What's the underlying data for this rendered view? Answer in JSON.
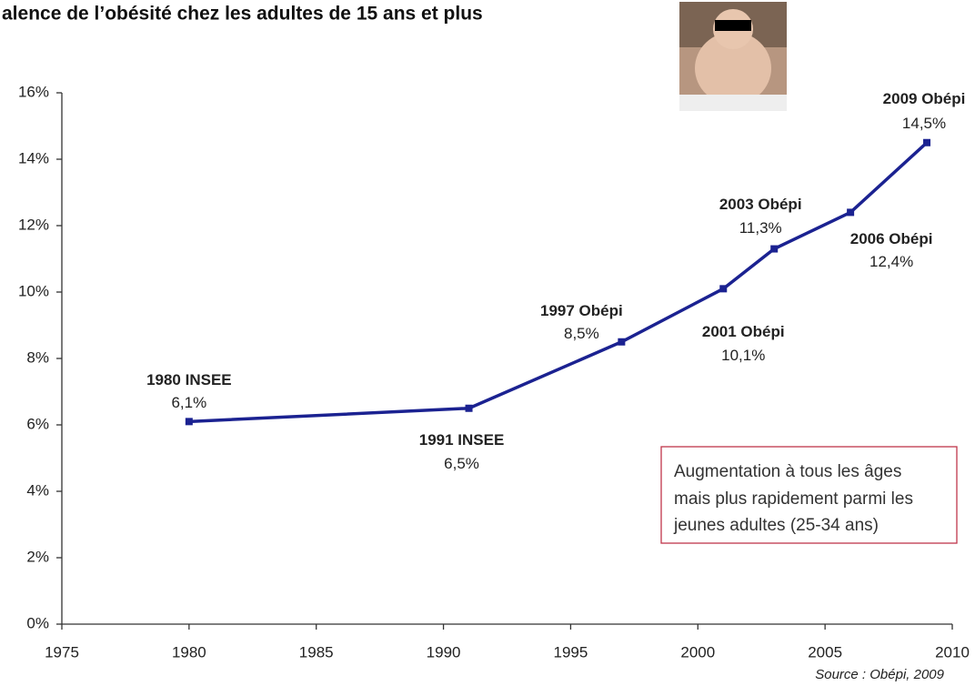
{
  "chart_data": {
    "type": "line",
    "title": "alence de l’obésité chez les adultes de 15 ans et plus",
    "x": [
      1980,
      1991,
      1997,
      2001,
      2003,
      2006,
      2009
    ],
    "series": [
      {
        "color": "#1b2291",
        "values": [
          6.1,
          6.5,
          8.5,
          10.1,
          11.3,
          12.4,
          14.5
        ],
        "value_labels": [
          "6,1%",
          "6,5%",
          "8,5%",
          "10,1%",
          "11,3%",
          "12,4%",
          "14,5%"
        ],
        "point_labels": [
          "1980 INSEE",
          "1991 INSEE",
          "1997 Obépi",
          "2001 Obépi",
          "2003 Obépi",
          "2006 Obépi",
          "2009 Obépi"
        ]
      }
    ],
    "xlim": [
      1975,
      2010
    ],
    "xticks": [
      1975,
      1980,
      1985,
      1990,
      1995,
      2000,
      2005,
      2010
    ],
    "ylim": [
      0,
      16
    ],
    "yticks": [
      {
        "value": 0,
        "label": "0%"
      },
      {
        "value": 2,
        "label": "2%"
      },
      {
        "value": 4,
        "label": "4%"
      },
      {
        "value": 6,
        "label": "6%"
      },
      {
        "value": 8,
        "label": "8%"
      },
      {
        "value": 10,
        "label": "10%"
      },
      {
        "value": 12,
        "label": "12%"
      },
      {
        "value": 14,
        "label": "14%"
      },
      {
        "value": 16,
        "label": "16%"
      }
    ],
    "grid": false,
    "annotation": [
      "Augmentation à tous les âges",
      "mais plus rapidement parmi les",
      "jeunes adultes (25-34 ans)"
    ],
    "source": "Source : Obépi, 2009"
  }
}
